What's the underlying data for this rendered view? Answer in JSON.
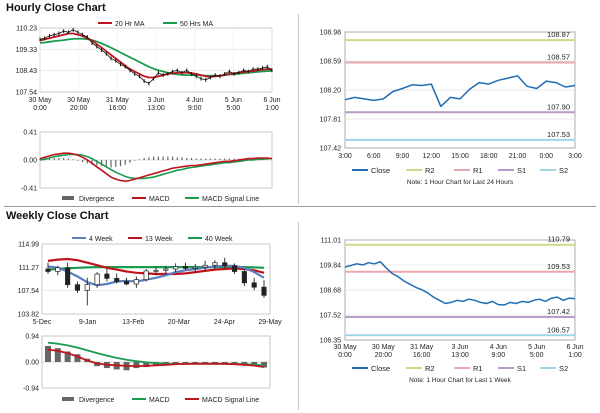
{
  "colors": {
    "price": "#111111",
    "ma_short": "#c0141c",
    "ma_long": "#1a9b4f",
    "macd": "#c0141c",
    "signal": "#1a9b4f",
    "divergence": "#666666",
    "close": "#1f6db3",
    "r2": "#c8dc8a",
    "r1": "#e7a7ac",
    "s1": "#b79bc8",
    "s2": "#9fd6e8"
  },
  "sections": {
    "hourly_title": "Hourly Close Chart",
    "weekly_title": "Weekly Close Chart"
  },
  "chart_data": [
    {
      "id": "hourly-price",
      "type": "line",
      "legend": [
        "20 Hr MA",
        "50 Hrs MA"
      ],
      "ylim": [
        107.54,
        110.23
      ],
      "yticks": [
        "110.23",
        "109.33",
        "108.43",
        "107.54"
      ],
      "xticks": [
        [
          "30 May",
          "0:00"
        ],
        [
          "30 May",
          "20:00"
        ],
        [
          "31 May",
          "16:00"
        ],
        [
          "3 Jun",
          "13:00"
        ],
        [
          "4 Jun",
          "9:00"
        ],
        [
          "5 Jun",
          "5:00"
        ],
        [
          "6 Jun",
          "1:00"
        ]
      ],
      "price": [
        109.75,
        109.8,
        109.9,
        109.95,
        110.0,
        110.1,
        110.05,
        110.15,
        110.05,
        109.95,
        109.85,
        109.6,
        109.45,
        109.3,
        109.15,
        108.95,
        108.85,
        108.7,
        108.6,
        108.45,
        108.3,
        108.2,
        108.0,
        107.9,
        108.1,
        108.35,
        108.25,
        108.3,
        108.4,
        108.45,
        108.35,
        108.45,
        108.3,
        108.2,
        108.1,
        108.05,
        108.15,
        108.25,
        108.2,
        108.3,
        108.4,
        108.3,
        108.35,
        108.45,
        108.4,
        108.5,
        108.5,
        108.55,
        108.6,
        108.45
      ],
      "ma_short": [
        109.7,
        109.75,
        109.8,
        109.85,
        109.9,
        109.95,
        110.0,
        110.0,
        109.95,
        109.9,
        109.8,
        109.7,
        109.55,
        109.4,
        109.25,
        109.1,
        108.95,
        108.8,
        108.65,
        108.5,
        108.4,
        108.3,
        108.2,
        108.15,
        108.15,
        108.2,
        108.25,
        108.3,
        108.32,
        108.35,
        108.35,
        108.35,
        108.33,
        108.3,
        108.25,
        108.2,
        108.18,
        108.2,
        108.22,
        108.25,
        108.3,
        108.32,
        108.35,
        108.38,
        108.4,
        108.42,
        108.45,
        108.48,
        108.5,
        108.5
      ],
      "ma_long": [
        109.6,
        109.62,
        109.65,
        109.68,
        109.7,
        109.72,
        109.75,
        109.77,
        109.78,
        109.78,
        109.76,
        109.72,
        109.66,
        109.58,
        109.5,
        109.4,
        109.3,
        109.2,
        109.1,
        109.0,
        108.9,
        108.8,
        108.7,
        108.6,
        108.52,
        108.45,
        108.4,
        108.35,
        108.3,
        108.28,
        108.26,
        108.25,
        108.25,
        108.25,
        108.24,
        108.23,
        108.22,
        108.22,
        108.23,
        108.25,
        108.27,
        108.29,
        108.31,
        108.33,
        108.35,
        108.37,
        108.39,
        108.4,
        108.42,
        108.43
      ]
    },
    {
      "id": "hourly-macd",
      "type": "line",
      "legend": [
        "Divergence",
        "MACD",
        "MACD Signal Line"
      ],
      "ylim": [
        -0.41,
        0.41
      ],
      "yticks": [
        "0.41",
        "0.00",
        "-0.41"
      ],
      "macd": [
        0.02,
        0.04,
        0.06,
        0.08,
        0.09,
        0.1,
        0.1,
        0.09,
        0.07,
        0.04,
        0.0,
        -0.05,
        -0.1,
        -0.15,
        -0.2,
        -0.25,
        -0.28,
        -0.3,
        -0.31,
        -0.3,
        -0.28,
        -0.26,
        -0.24,
        -0.22,
        -0.2,
        -0.18,
        -0.16,
        -0.14,
        -0.12,
        -0.11,
        -0.1,
        -0.09,
        -0.08,
        -0.08,
        -0.07,
        -0.06,
        -0.05,
        -0.04,
        -0.03,
        -0.02,
        -0.02,
        -0.01,
        0.0,
        0.01,
        0.02,
        0.02,
        0.03,
        0.03,
        0.03,
        0.02
      ],
      "signal": [
        0.0,
        0.01,
        0.03,
        0.05,
        0.06,
        0.07,
        0.08,
        0.08,
        0.08,
        0.07,
        0.05,
        0.02,
        -0.02,
        -0.06,
        -0.1,
        -0.14,
        -0.18,
        -0.21,
        -0.24,
        -0.26,
        -0.27,
        -0.27,
        -0.27,
        -0.26,
        -0.25,
        -0.23,
        -0.21,
        -0.19,
        -0.17,
        -0.15,
        -0.14,
        -0.12,
        -0.11,
        -0.1,
        -0.09,
        -0.08,
        -0.07,
        -0.06,
        -0.05,
        -0.04,
        -0.04,
        -0.03,
        -0.02,
        -0.01,
        0.0,
        0.0,
        0.01,
        0.01,
        0.02,
        0.02
      ],
      "divergence": [
        0.02,
        0.03,
        0.03,
        0.03,
        0.03,
        0.03,
        0.02,
        0.01,
        -0.01,
        -0.03,
        -0.05,
        -0.07,
        -0.08,
        -0.09,
        -0.1,
        -0.11,
        -0.1,
        -0.09,
        -0.07,
        -0.04,
        -0.01,
        0.01,
        0.03,
        0.04,
        0.05,
        0.05,
        0.05,
        0.05,
        0.05,
        0.04,
        0.04,
        0.03,
        0.03,
        0.02,
        0.02,
        0.02,
        0.02,
        0.02,
        0.02,
        0.02,
        0.02,
        0.02,
        0.02,
        0.02,
        0.02,
        0.02,
        0.02,
        0.02,
        0.01,
        0.0
      ]
    },
    {
      "id": "hourly-close",
      "type": "line",
      "legend": [
        "Close",
        "R2",
        "R1",
        "S1",
        "S2"
      ],
      "ylim": [
        107.42,
        108.98
      ],
      "yticks": [
        "108.98",
        "108.59",
        "108.20",
        "107.81",
        "107.42"
      ],
      "xticks": [
        "3:00",
        "6:00",
        "9:00",
        "12:00",
        "15:00",
        "18:00",
        "21:00",
        "0:00",
        "3:00"
      ],
      "close_x": [
        0,
        1,
        2,
        3,
        4,
        5,
        6,
        7,
        8,
        9,
        10,
        11,
        12,
        13,
        14,
        15,
        16,
        17,
        18,
        19,
        20,
        21,
        22,
        23,
        24
      ],
      "close": [
        108.07,
        108.1,
        108.08,
        108.06,
        108.08,
        108.18,
        108.22,
        108.27,
        108.26,
        108.28,
        107.98,
        108.1,
        108.08,
        108.21,
        108.3,
        108.28,
        108.33,
        108.36,
        108.39,
        108.25,
        108.22,
        108.32,
        108.3,
        108.24,
        108.26
      ],
      "levels": {
        "R2": 108.87,
        "R1": 108.57,
        "S1": 107.9,
        "S2": 107.53
      },
      "level_labels": [
        "108.87",
        "108.57",
        "107.90",
        "107.53"
      ],
      "note": "Note: 1 Hour Chart for Last 24 Hours"
    },
    {
      "id": "weekly-price",
      "type": "line",
      "legend": [
        "4 Week",
        "13 Week",
        "40 Week"
      ],
      "ylim": [
        103.82,
        114.99
      ],
      "yticks": [
        "114.99",
        "111.27",
        "107.54",
        "103.82"
      ],
      "xticks": [
        "5-Dec",
        "9-Jan",
        "13-Feb",
        "20-Mar",
        "24-Apr",
        "29-May"
      ],
      "candles": [
        {
          "o": 111.0,
          "h": 112.0,
          "l": 110.2,
          "c": 110.6
        },
        {
          "o": 110.6,
          "h": 111.5,
          "l": 110.0,
          "c": 111.2
        },
        {
          "o": 111.2,
          "h": 112.0,
          "l": 108.0,
          "c": 108.5
        },
        {
          "o": 108.5,
          "h": 109.0,
          "l": 107.2,
          "c": 107.6
        },
        {
          "o": 107.6,
          "h": 109.6,
          "l": 105.2,
          "c": 108.5
        },
        {
          "o": 108.5,
          "h": 110.5,
          "l": 108.0,
          "c": 110.2
        },
        {
          "o": 110.2,
          "h": 111.0,
          "l": 109.0,
          "c": 109.5
        },
        {
          "o": 109.5,
          "h": 110.3,
          "l": 108.7,
          "c": 109.0
        },
        {
          "o": 109.0,
          "h": 109.6,
          "l": 108.4,
          "c": 108.6
        },
        {
          "o": 108.6,
          "h": 109.8,
          "l": 108.0,
          "c": 109.3
        },
        {
          "o": 109.3,
          "h": 111.0,
          "l": 109.0,
          "c": 110.7
        },
        {
          "o": 110.7,
          "h": 111.3,
          "l": 110.0,
          "c": 110.8
        },
        {
          "o": 110.8,
          "h": 111.5,
          "l": 110.1,
          "c": 111.0
        },
        {
          "o": 111.0,
          "h": 111.9,
          "l": 110.5,
          "c": 111.4
        },
        {
          "o": 111.4,
          "h": 112.0,
          "l": 110.8,
          "c": 111.1
        },
        {
          "o": 111.1,
          "h": 111.8,
          "l": 110.4,
          "c": 111.3
        },
        {
          "o": 111.3,
          "h": 112.3,
          "l": 110.7,
          "c": 111.6
        },
        {
          "o": 111.6,
          "h": 112.4,
          "l": 111.0,
          "c": 112.0
        },
        {
          "o": 112.0,
          "h": 112.8,
          "l": 111.2,
          "c": 111.5
        },
        {
          "o": 111.5,
          "h": 111.9,
          "l": 110.2,
          "c": 110.6
        },
        {
          "o": 110.6,
          "h": 111.0,
          "l": 108.3,
          "c": 108.8
        },
        {
          "o": 108.8,
          "h": 109.6,
          "l": 107.6,
          "c": 108.1
        },
        {
          "o": 108.1,
          "h": 109.2,
          "l": 106.4,
          "c": 106.8
        }
      ],
      "ma4": [
        111.4,
        111.2,
        110.6,
        109.8,
        108.9,
        108.4,
        108.6,
        109.0,
        109.1,
        109.0,
        109.3,
        109.6,
        110.0,
        110.5,
        110.8,
        111.0,
        111.2,
        111.4,
        111.5,
        111.5,
        111.2,
        110.5,
        109.6
      ],
      "ma13": [
        112.3,
        112.5,
        112.6,
        112.4,
        112.0,
        111.6,
        111.2,
        110.9,
        110.6,
        110.4,
        110.3,
        110.2,
        110.2,
        110.2,
        110.3,
        110.5,
        110.7,
        110.9,
        111.0,
        111.1,
        111.0,
        110.8,
        110.4
      ],
      "ma40": [
        110.9,
        111.0,
        111.1,
        111.2,
        111.25,
        111.3,
        111.3,
        111.3,
        111.3,
        111.3,
        111.3,
        111.3,
        111.3,
        111.3,
        111.3,
        111.3,
        111.3,
        111.3,
        111.3,
        111.3,
        111.3,
        111.25,
        111.2
      ]
    },
    {
      "id": "weekly-macd",
      "type": "line",
      "legend": [
        "Divergence",
        "MACD",
        "MACD Signal Line"
      ],
      "ylim": [
        -0.94,
        0.94
      ],
      "yticks": [
        "0.94",
        "0.00",
        "-0.94"
      ],
      "macd": [
        0.45,
        0.4,
        0.32,
        0.2,
        0.05,
        -0.05,
        -0.1,
        -0.12,
        -0.14,
        -0.15,
        -0.14,
        -0.12,
        -0.1,
        -0.08,
        -0.07,
        -0.06,
        -0.06,
        -0.06,
        -0.07,
        -0.08,
        -0.1,
        -0.13,
        -0.18
      ],
      "signal": [
        0.7,
        0.66,
        0.6,
        0.52,
        0.42,
        0.32,
        0.23,
        0.15,
        0.08,
        0.03,
        -0.01,
        -0.04,
        -0.06,
        -0.07,
        -0.07,
        -0.07,
        -0.07,
        -0.07,
        -0.07,
        -0.07,
        -0.08,
        -0.1,
        -0.12
      ],
      "divergence": [
        0.58,
        0.5,
        0.38,
        0.28,
        0.12,
        -0.15,
        -0.22,
        -0.27,
        -0.3,
        -0.22,
        -0.18,
        -0.13,
        -0.1,
        -0.08,
        -0.06,
        -0.05,
        -0.04,
        -0.04,
        -0.05,
        -0.06,
        -0.08,
        -0.12,
        -0.2
      ]
    },
    {
      "id": "weekly-close",
      "type": "line",
      "legend": [
        "Close",
        "R2",
        "R1",
        "S1",
        "S2"
      ],
      "ylim": [
        106.35,
        111.01
      ],
      "yticks": [
        "111.01",
        "109.84",
        "108.68",
        "107.52",
        "106.35"
      ],
      "xticks": [
        [
          "30 May",
          "0:00"
        ],
        [
          "30 May",
          "20:00"
        ],
        [
          "31 May",
          "16:00"
        ],
        [
          "3 Jun",
          "13:00"
        ],
        [
          "4 Jun",
          "9:00"
        ],
        [
          "5 Jun",
          "5:00"
        ],
        [
          "6 Jun",
          "1:00"
        ]
      ],
      "close": [
        109.75,
        109.82,
        109.9,
        109.85,
        109.95,
        109.9,
        110.0,
        109.7,
        109.45,
        109.3,
        109.1,
        108.95,
        108.8,
        108.7,
        108.55,
        108.35,
        108.2,
        108.05,
        108.1,
        108.2,
        108.15,
        108.25,
        108.2,
        108.1,
        108.05,
        108.15,
        108.0,
        107.98,
        108.1,
        108.05,
        108.15,
        108.1,
        108.2,
        108.25,
        108.15,
        108.3,
        108.35,
        108.2,
        108.3,
        108.28
      ],
      "levels": {
        "R2": 110.79,
        "R1": 109.53,
        "S1": 107.42,
        "S2": 106.57
      },
      "level_labels": [
        "110.79",
        "109.53",
        "107.42",
        "106.57"
      ],
      "note": "Note: 1 Hour Chart for Last 1 Week"
    }
  ]
}
